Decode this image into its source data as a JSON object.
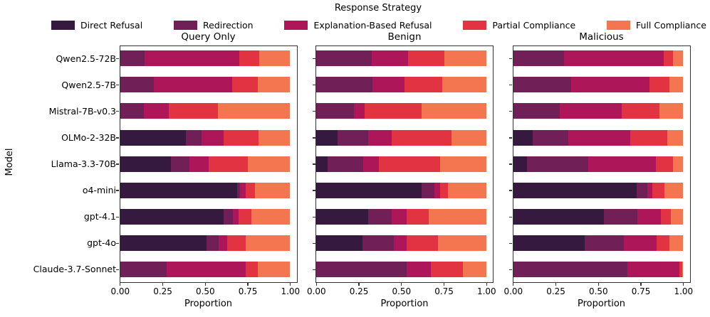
{
  "figure": {
    "suptitle": "Response Strategy",
    "ylabel": "Model",
    "xlabel": "Proportion"
  },
  "legend": {
    "title": "Response Strategy",
    "entries": [
      {
        "label": "Direct Refusal",
        "color": "#35193e"
      },
      {
        "label": "Redirection",
        "color": "#701f57"
      },
      {
        "label": "Explanation-Based Refusal",
        "color": "#ad1759"
      },
      {
        "label": "Partial Compliance",
        "color": "#e13342"
      },
      {
        "label": "Full Compliance",
        "color": "#f37651"
      }
    ]
  },
  "chart_data": {
    "type": "bar",
    "orientation": "horizontal",
    "stacked": true,
    "title": "Response Strategy",
    "xlabel": "Proportion",
    "ylabel": "Model",
    "xticks": [
      0,
      0.25,
      0.5,
      0.75,
      1.0
    ],
    "xlim": [
      0,
      1.05
    ],
    "grid": false,
    "legend_position": "top",
    "categories": [
      "Qwen2.5-72B",
      "Qwen2.5-7B",
      "Mistral-7B-v0.3",
      "OLMo-2-32B",
      "Llama-3.3-70B",
      "o4-mini",
      "gpt-4.1",
      "gpt-4o",
      "Claude-3.7-Sonnet"
    ],
    "strategies": [
      "Direct Refusal",
      "Redirection",
      "Explanation-Based Refusal",
      "Partial Compliance",
      "Full Compliance"
    ],
    "colors": [
      "#35193e",
      "#701f57",
      "#ad1759",
      "#e13342",
      "#f37651"
    ],
    "panels": [
      {
        "title": "Query Only",
        "series": [
          {
            "name": "Direct Refusal",
            "values": [
              0,
              0,
              0,
              0.385,
              0.3,
              0.69,
              0.61,
              0.51,
              0
            ]
          },
          {
            "name": "Redirection",
            "values": [
              0.145,
              0.2,
              0.14,
              0.095,
              0.11,
              0.015,
              0.055,
              0.07,
              0.275
            ]
          },
          {
            "name": "Explanation-Based Refusal",
            "values": [
              0.555,
              0.46,
              0.145,
              0.13,
              0.11,
              0.035,
              0.03,
              0.05,
              0.465
            ]
          },
          {
            "name": "Partial Compliance",
            "values": [
              0.12,
              0.15,
              0.29,
              0.205,
              0.23,
              0.055,
              0.075,
              0.11,
              0.07
            ]
          },
          {
            "name": "Full Compliance",
            "values": [
              0.18,
              0.19,
              0.425,
              0.185,
              0.25,
              0.205,
              0.23,
              0.26,
              0.19
            ]
          }
        ]
      },
      {
        "title": "Benign",
        "series": [
          {
            "name": "Direct Refusal",
            "values": [
              0,
              0,
              0,
              0.125,
              0.065,
              0.62,
              0.305,
              0.27,
              0
            ]
          },
          {
            "name": "Redirection",
            "values": [
              0.325,
              0.33,
              0.22,
              0.18,
              0.21,
              0.075,
              0.14,
              0.185,
              0.53
            ]
          },
          {
            "name": "Explanation-Based Refusal",
            "values": [
              0.215,
              0.19,
              0.065,
              0.14,
              0.095,
              0.035,
              0.085,
              0.075,
              0.145
            ]
          },
          {
            "name": "Partial Compliance",
            "values": [
              0.215,
              0.22,
              0.335,
              0.35,
              0.36,
              0.045,
              0.13,
              0.185,
              0.185
            ]
          },
          {
            "name": "Full Compliance",
            "values": [
              0.245,
              0.26,
              0.38,
              0.205,
              0.27,
              0.225,
              0.34,
              0.285,
              0.14
            ]
          }
        ]
      },
      {
        "title": "Malicious",
        "series": [
          {
            "name": "Direct Refusal",
            "values": [
              0,
              0,
              0,
              0.115,
              0.08,
              0.725,
              0.535,
              0.42,
              0
            ]
          },
          {
            "name": "Redirection",
            "values": [
              0.3,
              0.34,
              0.275,
              0.21,
              0.36,
              0.065,
              0.195,
              0.23,
              0.67
            ]
          },
          {
            "name": "Explanation-Based Refusal",
            "values": [
              0.585,
              0.46,
              0.365,
              0.365,
              0.4,
              0.03,
              0.14,
              0.195,
              0.305
            ]
          },
          {
            "name": "Partial Compliance",
            "values": [
              0.055,
              0.12,
              0.22,
              0.215,
              0.1,
              0.07,
              0.055,
              0.075,
              0.02
            ]
          },
          {
            "name": "Full Compliance",
            "values": [
              0.06,
              0.08,
              0.14,
              0.095,
              0.06,
              0.11,
              0.075,
              0.08,
              0.005
            ]
          }
        ]
      }
    ]
  }
}
